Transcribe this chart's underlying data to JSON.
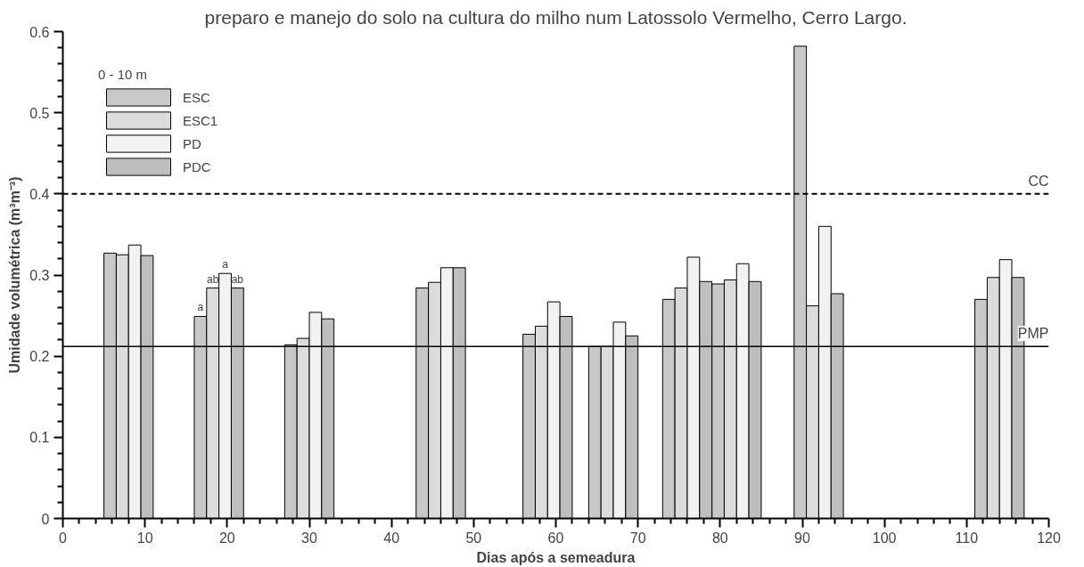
{
  "chart_data": {
    "type": "bar",
    "title": "preparo e manejo do solo na cultura do milho num Latossolo Vermelho, Cerro Largo.",
    "xlabel": "Dias após a semeadura",
    "ylabel": "Umidade volumétrica (m³m⁻³)",
    "legend_title": "0 - 10 m",
    "legend": "top left",
    "grid": false,
    "xlim": [
      0,
      120
    ],
    "ylim": [
      0,
      0.6
    ],
    "xticks": [
      0,
      {
        "value": 2,
        "label": null
      },
      {
        "value": 4,
        "label": null
      },
      {
        "value": 6,
        "label": null
      },
      {
        "value": 8,
        "label": null
      },
      10,
      {
        "value": 12,
        "label": null
      },
      {
        "value": 14,
        "label": null
      },
      {
        "value": 16,
        "label": null
      },
      {
        "value": 18,
        "label": null
      },
      20,
      {
        "value": 22,
        "label": null
      },
      {
        "value": 24,
        "label": null
      },
      {
        "value": 26,
        "label": null
      },
      {
        "value": 28,
        "label": null
      },
      30,
      {
        "value": 32,
        "label": null
      },
      {
        "value": 34,
        "label": null
      },
      {
        "value": 36,
        "label": null
      },
      {
        "value": 38,
        "label": null
      },
      40,
      {
        "value": 42,
        "label": null
      },
      {
        "value": 44,
        "label": null
      },
      {
        "value": 46,
        "label": null
      },
      {
        "value": 48,
        "label": null
      },
      50,
      {
        "value": 52,
        "label": null
      },
      {
        "value": 54,
        "label": null
      },
      {
        "value": 56,
        "label": null
      },
      {
        "value": 58,
        "label": null
      },
      60,
      {
        "value": 62,
        "label": null
      },
      {
        "value": 64,
        "label": null
      },
      {
        "value": 66,
        "label": null
      },
      {
        "value": 68,
        "label": null
      },
      70,
      {
        "value": 72,
        "label": null
      },
      {
        "value": 74,
        "label": null
      },
      {
        "value": 76,
        "label": null
      },
      {
        "value": 78,
        "label": null
      },
      80,
      {
        "value": 82,
        "label": null
      },
      {
        "value": 84,
        "label": null
      },
      {
        "value": 86,
        "label": null
      },
      {
        "value": 88,
        "label": null
      },
      90,
      {
        "value": 92,
        "label": null
      },
      {
        "value": 94,
        "label": null
      },
      {
        "value": 96,
        "label": null
      },
      {
        "value": 98,
        "label": null
      },
      100,
      {
        "value": 102,
        "label": null
      },
      {
        "value": 104,
        "label": null
      },
      {
        "value": 106,
        "label": null
      },
      {
        "value": 108,
        "label": null
      },
      110,
      {
        "value": 112,
        "label": null
      },
      {
        "value": 114,
        "label": null
      },
      {
        "value": 116,
        "label": null
      },
      {
        "value": 118,
        "label": null
      },
      120
    ],
    "yticks": [
      0,
      {
        "value": 0.02,
        "label": null
      },
      {
        "value": 0.04,
        "label": null
      },
      {
        "value": 0.06,
        "label": null
      },
      {
        "value": 0.08,
        "label": null
      },
      0.1,
      {
        "value": 0.12,
        "label": null
      },
      {
        "value": 0.14,
        "label": null
      },
      {
        "value": 0.16,
        "label": null
      },
      {
        "value": 0.18,
        "label": null
      },
      0.2,
      {
        "value": 0.22,
        "label": null
      },
      {
        "value": 0.24,
        "label": null
      },
      {
        "value": 0.26,
        "label": null
      },
      {
        "value": 0.28,
        "label": null
      },
      0.3,
      {
        "value": 0.32,
        "label": null
      },
      {
        "value": 0.34,
        "label": null
      },
      {
        "value": 0.36,
        "label": null
      },
      {
        "value": 0.38,
        "label": null
      },
      0.4,
      {
        "value": 0.42,
        "label": null
      },
      {
        "value": 0.44,
        "label": null
      },
      {
        "value": 0.46,
        "label": null
      },
      {
        "value": 0.48,
        "label": null
      },
      0.5,
      {
        "value": 0.52,
        "label": null
      },
      {
        "value": 0.54,
        "label": null
      },
      {
        "value": 0.56,
        "label": null
      },
      {
        "value": 0.58,
        "label": null
      },
      0.6
    ],
    "series": [
      {
        "name": "ESC",
        "color": "#c8c8c8",
        "x": [
          5.75,
          16.75,
          27.75,
          43.75,
          56.75,
          64.75,
          73.75,
          79.75,
          89.75,
          111.75
        ],
        "values": [
          0.327,
          0.249,
          0.214,
          0.284,
          0.227,
          0.212,
          0.27,
          0.289,
          0.582,
          0.27
        ]
      },
      {
        "name": "ESC1",
        "color": "#dcdcdc",
        "x": [
          7.25,
          18.25,
          29.25,
          45.25,
          58.25,
          66.25,
          75.25,
          81.25,
          91.25,
          113.25
        ],
        "values": [
          0.325,
          0.284,
          0.222,
          0.291,
          0.237,
          0.212,
          0.284,
          0.294,
          0.262,
          0.297
        ]
      },
      {
        "name": "PD",
        "color": "#f2f2f2",
        "x": [
          8.75,
          19.75,
          30.75,
          46.75,
          59.75,
          67.75,
          76.75,
          82.75,
          92.75,
          114.75
        ],
        "values": [
          0.337,
          0.302,
          0.254,
          0.309,
          0.267,
          0.242,
          0.322,
          0.314,
          0.36,
          0.319
        ]
      },
      {
        "name": "PDC",
        "color": "#bebebe",
        "x": [
          10.25,
          21.25,
          32.25,
          48.25,
          61.25,
          69.25,
          78.25,
          84.25,
          94.25,
          116.25
        ],
        "values": [
          0.324,
          0.284,
          0.246,
          0.309,
          0.249,
          0.225,
          0.292,
          0.292,
          0.277,
          0.297
        ]
      }
    ],
    "ref_lines": [
      {
        "axis": "y",
        "value": 0.4,
        "label": "CC",
        "line_style": "dashed",
        "color": "#000000"
      },
      {
        "axis": "y",
        "value": 0.212,
        "label": "PMP",
        "line_style": "solid",
        "color": "#000000"
      }
    ],
    "annotations": [
      {
        "text": "a",
        "x": 16.75,
        "y": 0.249
      },
      {
        "text": "ab",
        "x": 18.25,
        "y": 0.284
      },
      {
        "text": "a",
        "x": 19.75,
        "y": 0.302
      },
      {
        "text": "ab",
        "x": 21.25,
        "y": 0.284
      }
    ]
  }
}
